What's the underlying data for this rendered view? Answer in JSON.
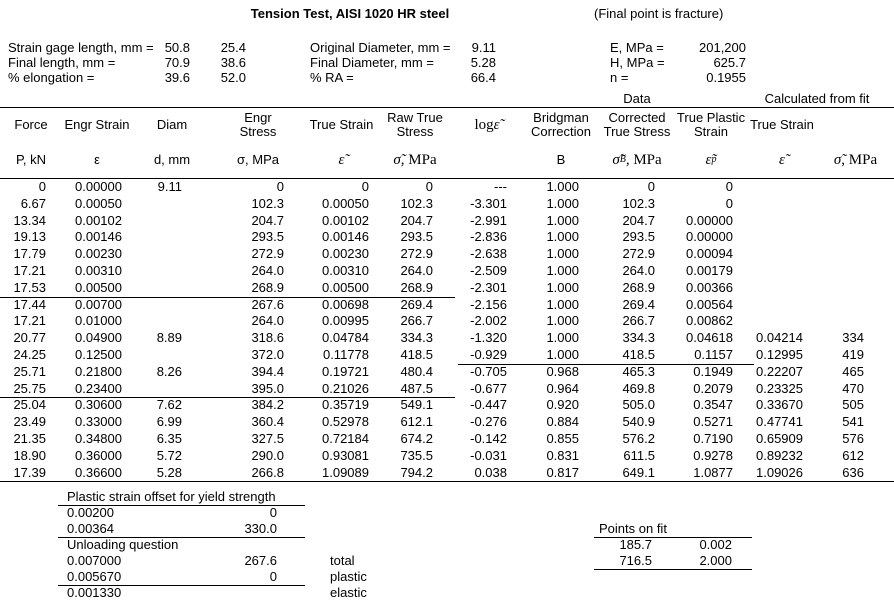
{
  "title": "Tension Test, AISI 1020 HR steel",
  "subtitle": "(Final point is fracture)",
  "specimen_info": {
    "left": [
      {
        "label": "Strain gage length, mm =",
        "v1": "50.8",
        "v2": "25.4"
      },
      {
        "label": "Final length, mm =",
        "v1": "70.9",
        "v2": "38.6"
      },
      {
        "label": "% elongation =",
        "v1": "39.6",
        "v2": "52.0"
      }
    ],
    "middle": [
      {
        "label": "Original Diameter, mm =",
        "value": "9.11"
      },
      {
        "label": "Final Diameter, mm =",
        "value": "5.28"
      },
      {
        "label": "% RA =",
        "value": "66.4"
      }
    ],
    "fit_constants": [
      {
        "label": "E, MPa =",
        "value": "201,200"
      },
      {
        "label": "H, MPa =",
        "value": "625.7"
      },
      {
        "label": "n =",
        "value": "0.1955"
      }
    ]
  },
  "group_headers": {
    "data": "Data",
    "calculated": "Calculated from fit"
  },
  "columns": [
    {
      "name": "Force",
      "units": "P, kN"
    },
    {
      "name": "Engr Strain",
      "units": "ε"
    },
    {
      "name": "Diam",
      "units": "d, mm"
    },
    {
      "name": "Engr\nStress",
      "units": "σ, MPa"
    },
    {
      "name": "True Strain",
      "units": "[ε̃]"
    },
    {
      "name": "Raw True\nStress",
      "units": "[σ̃], MPa"
    },
    {
      "name": "log [ε̃]",
      "units": ""
    },
    {
      "name": "Bridgman\nCorrection",
      "units": "B"
    },
    {
      "name": "Corrected\nTrue Stress",
      "units": "[σ̃]{B}, MPa"
    },
    {
      "name": "True Plastic\nStrain",
      "units": "[ε̃]{p}"
    },
    {
      "name": "True Strain",
      "units": "[ε̃]"
    },
    {
      "name": "",
      "units": "[σ̃], MPa"
    }
  ],
  "rows": [
    [
      "0",
      "0.00000",
      "9.11",
      "0",
      "0",
      "0",
      "---",
      "1.000",
      "0",
      "0",
      "",
      ""
    ],
    [
      "6.67",
      "0.00050",
      "",
      "102.3",
      "0.00050",
      "102.3",
      "-3.301",
      "1.000",
      "102.3",
      "0",
      "",
      ""
    ],
    [
      "13.34",
      "0.00102",
      "",
      "204.7",
      "0.00102",
      "204.7",
      "-2.991",
      "1.000",
      "204.7",
      "0.00000",
      "",
      ""
    ],
    [
      "19.13",
      "0.00146",
      "",
      "293.5",
      "0.00146",
      "293.5",
      "-2.836",
      "1.000",
      "293.5",
      "0.00000",
      "",
      ""
    ],
    [
      "17.79",
      "0.00230",
      "",
      "272.9",
      "0.00230",
      "272.9",
      "-2.638",
      "1.000",
      "272.9",
      "0.00094",
      "",
      ""
    ],
    [
      "17.21",
      "0.00310",
      "",
      "264.0",
      "0.00310",
      "264.0",
      "-2.509",
      "1.000",
      "264.0",
      "0.00179",
      "",
      ""
    ],
    [
      "17.53",
      "0.00500",
      "",
      "268.9",
      "0.00500",
      "268.9",
      "-2.301",
      "1.000",
      "268.9",
      "0.00366",
      "",
      ""
    ],
    [
      "17.44",
      "0.00700",
      "",
      "267.6",
      "0.00698",
      "269.4",
      "-2.156",
      "1.000",
      "269.4",
      "0.00564",
      "",
      ""
    ],
    [
      "17.21",
      "0.01000",
      "",
      "264.0",
      "0.00995",
      "266.7",
      "-2.002",
      "1.000",
      "266.7",
      "0.00862",
      "",
      ""
    ],
    [
      "20.77",
      "0.04900",
      "8.89",
      "318.6",
      "0.04784",
      "334.3",
      "-1.320",
      "1.000",
      "334.3",
      "0.04618",
      "0.04214",
      "334"
    ],
    [
      "24.25",
      "0.12500",
      "",
      "372.0",
      "0.11778",
      "418.5",
      "-0.929",
      "1.000",
      "418.5",
      "0.1157",
      "0.12995",
      "419"
    ],
    [
      "25.71",
      "0.21800",
      "8.26",
      "394.4",
      "0.19721",
      "480.4",
      "-0.705",
      "0.968",
      "465.3",
      "0.1949",
      "0.22207",
      "465"
    ],
    [
      "25.75",
      "0.23400",
      "",
      "395.0",
      "0.21026",
      "487.5",
      "-0.677",
      "0.964",
      "469.8",
      "0.2079",
      "0.23325",
      "470"
    ],
    [
      "25.04",
      "0.30600",
      "7.62",
      "384.2",
      "0.35719",
      "549.1",
      "-0.447",
      "0.920",
      "505.0",
      "0.3547",
      "0.33670",
      "505"
    ],
    [
      "23.49",
      "0.33000",
      "6.99",
      "360.4",
      "0.52978",
      "612.1",
      "-0.276",
      "0.884",
      "540.9",
      "0.5271",
      "0.47741",
      "541"
    ],
    [
      "21.35",
      "0.34800",
      "6.35",
      "327.5",
      "0.72184",
      "674.2",
      "-0.142",
      "0.855",
      "576.2",
      "0.7190",
      "0.65909",
      "576"
    ],
    [
      "18.90",
      "0.36000",
      "5.72",
      "290.0",
      "0.93081",
      "735.5",
      "-0.031",
      "0.831",
      "611.5",
      "0.9278",
      "0.89232",
      "612"
    ],
    [
      "17.39",
      "0.36600",
      "5.28",
      "266.8",
      "1.09089",
      "794.2",
      "0.038",
      "0.817",
      "649.1",
      "1.0877",
      "1.09026",
      "636"
    ]
  ],
  "footer": {
    "yield_offset": {
      "title": "Plastic strain offset for yield strength",
      "rows": [
        [
          "0.00200",
          "0"
        ],
        [
          "0.00364",
          "330.0"
        ]
      ]
    },
    "unloading": {
      "title": "Unloading question",
      "rows": [
        [
          "0.007000",
          "267.6",
          "total"
        ],
        [
          "0.005670",
          "0",
          "plastic"
        ],
        [
          "0.001330",
          "",
          "elastic"
        ]
      ]
    },
    "points_on_fit": {
      "title": "Points on fit",
      "rows": [
        [
          "185.7",
          "0.002"
        ],
        [
          "716.5",
          "2.000"
        ]
      ]
    }
  }
}
